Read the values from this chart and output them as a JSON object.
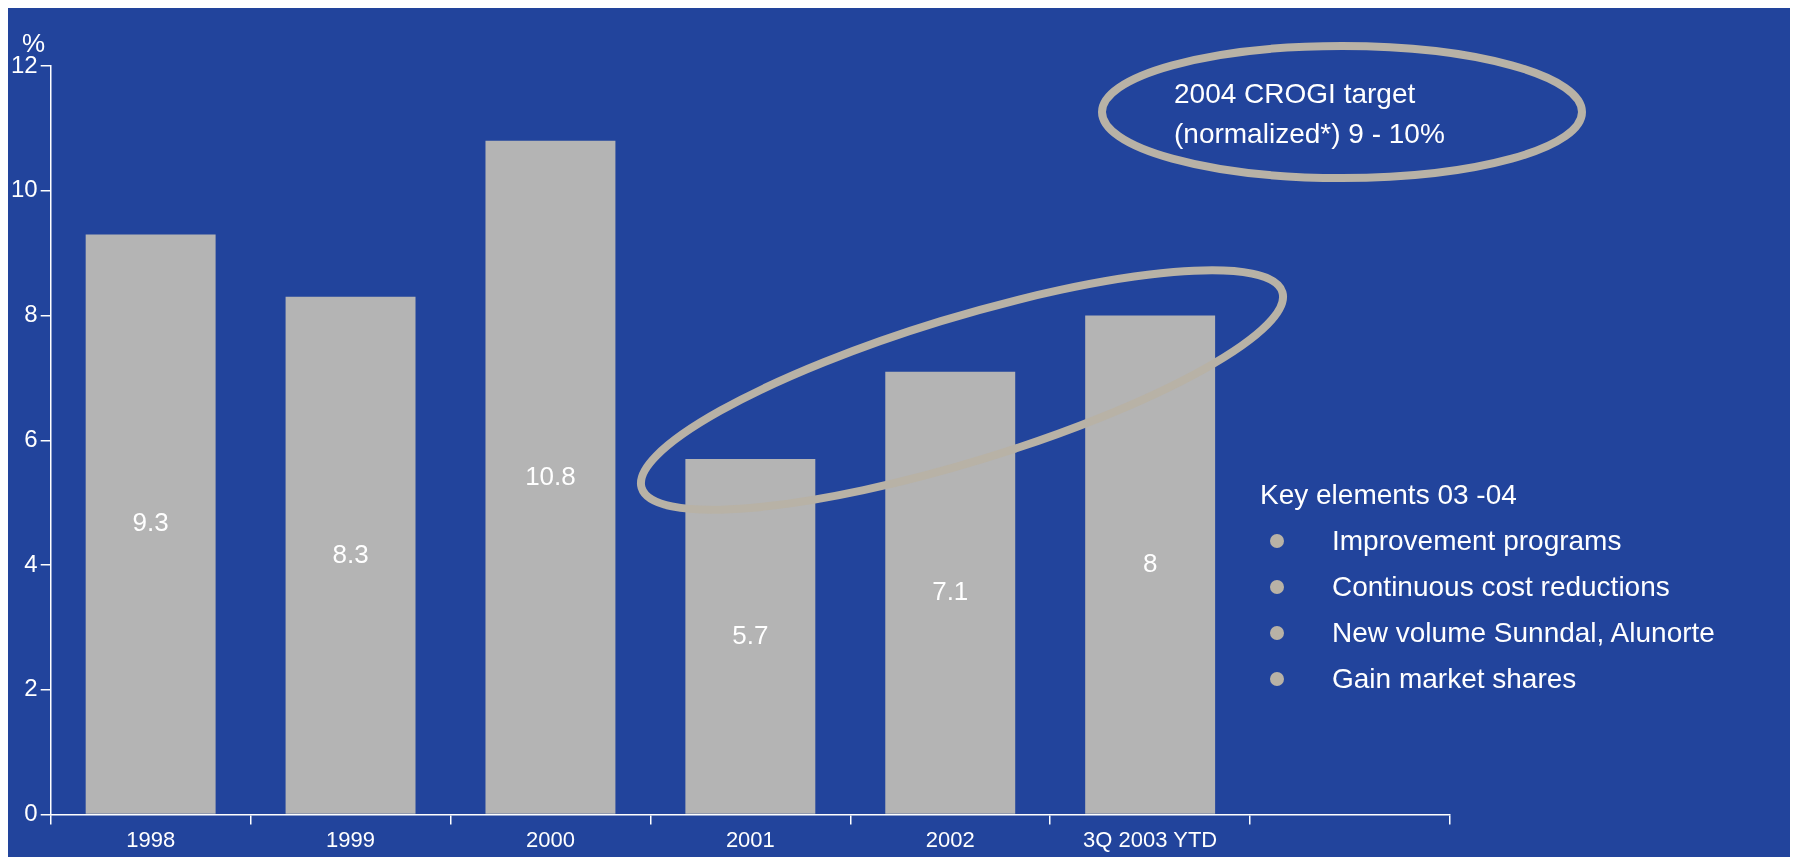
{
  "chart_data": {
    "type": "bar",
    "ylabel": "%",
    "categories": [
      "1998",
      "1999",
      "2000",
      "2001",
      "2002",
      "3Q 2003 YTD",
      null
    ],
    "values": [
      9.3,
      8.3,
      10.8,
      5.7,
      7.1,
      8,
      null
    ],
    "color": "#b4b4b4",
    "ylim": [
      0,
      12
    ],
    "yticks": [
      0,
      2,
      4,
      6,
      8,
      10,
      12
    ],
    "grid": false,
    "legend": false,
    "data_labels": true,
    "annotations": [
      "2004 CROGI target (normalized*) 9 - 10%",
      "Key elements 03 -04",
      "Improvement programs",
      "Continuous cost reductions",
      "New volume Sunndal, Alunorte",
      "Gain market shares"
    ]
  }
}
